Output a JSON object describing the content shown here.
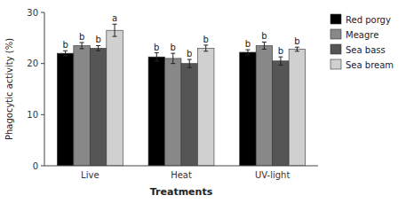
{
  "chart_data": {
    "type": "bar",
    "xlabel": "Treatments",
    "ylabel": "Phagocytic activity (%)",
    "categories": [
      "Live",
      "Heat",
      "UV-light"
    ],
    "series": [
      {
        "name": "Red porgy",
        "color": "#000000",
        "values": [
          22.0,
          21.3,
          22.2
        ],
        "errors": [
          0.5,
          0.8,
          0.5
        ],
        "annotations": [
          "b",
          "b",
          "b"
        ]
      },
      {
        "name": "Meagre",
        "color": "#888888",
        "values": [
          23.5,
          21.0,
          23.5
        ],
        "errors": [
          0.6,
          1.0,
          0.7
        ],
        "annotations": [
          "b",
          "b",
          "b"
        ]
      },
      {
        "name": "Sea bass",
        "color": "#555555",
        "values": [
          23.0,
          20.0,
          20.5
        ],
        "errors": [
          0.5,
          0.8,
          0.8
        ],
        "annotations": [
          "b",
          "b",
          "b"
        ]
      },
      {
        "name": "Sea bream",
        "color": "#d0d0d0",
        "values": [
          26.5,
          23.0,
          22.8
        ],
        "errors": [
          1.2,
          0.6,
          0.4
        ],
        "annotations": [
          "a",
          "b",
          "b"
        ]
      }
    ],
    "ylim": [
      0,
      30
    ],
    "yticks": [
      0,
      10,
      20,
      30
    ],
    "grid": false,
    "legend": "right"
  }
}
